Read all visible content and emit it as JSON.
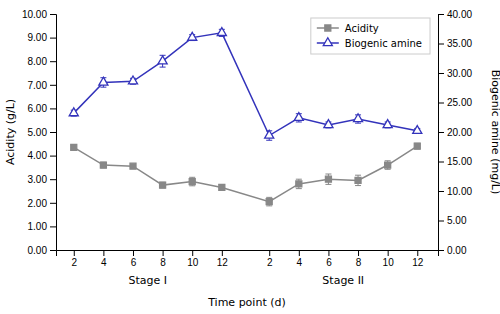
{
  "chart_data": {
    "type": "line",
    "categories": [
      "2",
      "4",
      "6",
      "8",
      "10",
      "12",
      "2",
      "4",
      "6",
      "8",
      "10",
      "12"
    ],
    "annotations": [
      "Stage I",
      "Stage II"
    ],
    "series": [
      {
        "name": "Acidity",
        "color": "#888888",
        "marker": "square",
        "values": [
          4.35,
          3.6,
          3.55,
          2.75,
          2.9,
          2.65,
          2.05,
          2.8,
          3.0,
          2.95,
          3.6,
          4.4
        ],
        "errors": [
          0.1,
          0.12,
          0.08,
          0.12,
          0.18,
          0.12,
          0.18,
          0.2,
          0.22,
          0.22,
          0.18,
          0.12
        ]
      },
      {
        "name": "Biogenic amine",
        "color": "#3333BB",
        "marker": "triangle",
        "axis": "y2",
        "values": [
          23.2,
          28.4,
          28.6,
          32.0,
          36.0,
          36.8,
          19.4,
          22.4,
          21.2,
          22.2,
          21.2,
          20.2
        ],
        "errors": [
          0.5,
          0.8,
          0.5,
          1.0,
          0.5,
          0.6,
          0.8,
          0.7,
          0.5,
          0.7,
          0.5,
          0.4
        ]
      }
    ],
    "xlabel": "Time point (d)",
    "ylabel": "Acidity (g/L)",
    "y2label": "Biogenic amine (mg/L)",
    "ylim": [
      0.0,
      10.0
    ],
    "yticks": [
      {
        "value": 0,
        "label": "0.00"
      },
      {
        "value": 1,
        "label": "1.00"
      },
      {
        "value": 2,
        "label": "2.00"
      },
      {
        "value": 3,
        "label": "3.00"
      },
      {
        "value": 4,
        "label": "4.00"
      },
      {
        "value": 5,
        "label": "5.00"
      },
      {
        "value": 6,
        "label": "6.00"
      },
      {
        "value": 7,
        "label": "7.00"
      },
      {
        "value": 8,
        "label": "8.00"
      },
      {
        "value": 9,
        "label": "9.00"
      },
      {
        "value": 10,
        "label": "10.00"
      }
    ],
    "y2lim": [
      0.0,
      40.0
    ],
    "y2ticks": [
      {
        "value": 0,
        "label": "0.00"
      },
      {
        "value": 5,
        "label": "5.00"
      },
      {
        "value": 10,
        "label": "10.00"
      },
      {
        "value": 15,
        "label": "15.00"
      },
      {
        "value": 20,
        "label": "20.00"
      },
      {
        "value": 25,
        "label": "25.00"
      },
      {
        "value": 30,
        "label": "30.00"
      },
      {
        "value": 35,
        "label": "35.00"
      },
      {
        "value": 40,
        "label": "40.00"
      }
    ],
    "legend": "upper right",
    "grid": false
  }
}
